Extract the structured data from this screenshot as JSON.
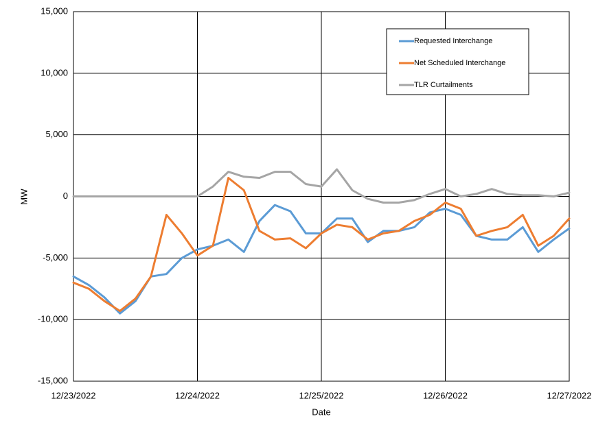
{
  "chart_data": {
    "type": "line",
    "x_label": "Date",
    "y_label": "MW",
    "categories": [
      "12/23/2022",
      null,
      null,
      null,
      null,
      null,
      null,
      null,
      "12/24/2022",
      null,
      null,
      null,
      null,
      null,
      null,
      null,
      "12/25/2022",
      null,
      null,
      null,
      null,
      null,
      null,
      null,
      "12/26/2022",
      null,
      null,
      null,
      null,
      null,
      null,
      null,
      "12/27/2022"
    ],
    "series": [
      {
        "name": "Requested Interchange",
        "color": "#5b9bd5",
        "values": [
          -6500,
          -7200,
          -8200,
          -9500,
          -8500,
          -6500,
          -6300,
          -5000,
          -4300,
          -4000,
          -3500,
          -4500,
          -2000,
          -700,
          -1200,
          -3000,
          -3000,
          -1800,
          -1800,
          -3700,
          -2800,
          -2800,
          -2500,
          -1300,
          -1000,
          -1500,
          -3200,
          -3500,
          -3500,
          -2500,
          -4500,
          -3500,
          -2600
        ]
      },
      {
        "name": "Net Scheduled Interchange",
        "color": "#ed7d31",
        "values": [
          -7000,
          -7500,
          -8500,
          -9300,
          -8300,
          -6500,
          -1500,
          -3000,
          -4800,
          -4000,
          1500,
          500,
          -2800,
          -3500,
          -3400,
          -4200,
          -3000,
          -2300,
          -2500,
          -3500,
          -3000,
          -2800,
          -2000,
          -1500,
          -500,
          -1000,
          -3200,
          -2800,
          -2500,
          -1500,
          -4000,
          -3200,
          -1800
        ]
      },
      {
        "name": "TLR Curtailments",
        "color": "#a5a5a5",
        "values": [
          0,
          0,
          0,
          0,
          0,
          0,
          0,
          0,
          0,
          800,
          2000,
          1600,
          1500,
          2000,
          2000,
          1000,
          800,
          2200,
          500,
          -200,
          -500,
          -500,
          -300,
          200,
          600,
          0,
          200,
          600,
          200,
          100,
          100,
          0,
          300
        ]
      }
    ],
    "ylim": [
      -15000,
      15000
    ],
    "yticks": [
      {
        "value": -15000,
        "label": "-15,000"
      },
      {
        "value": -10000,
        "label": "-10,000"
      },
      {
        "value": -5000,
        "label": "-5,000"
      },
      0,
      {
        "value": 5000,
        "label": "5,000"
      },
      {
        "value": 10000,
        "label": "10,000"
      },
      {
        "value": 15000,
        "label": "15,000"
      }
    ],
    "grid": true,
    "legend": "upper right"
  }
}
